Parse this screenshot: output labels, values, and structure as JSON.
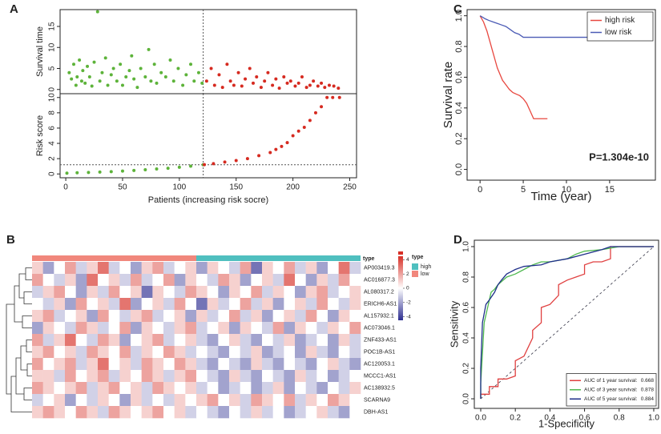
{
  "chart_data": [
    {
      "type": "scatter",
      "label": "A",
      "ylabel": "Survival time",
      "xlim": [
        -5,
        256
      ],
      "ylim": [
        -1,
        19
      ],
      "yticks": [
        0,
        5,
        10,
        15
      ],
      "vline": 121,
      "series": [
        {
          "color": "#5db33a",
          "x": [
            3,
            5,
            7,
            9,
            10,
            12,
            14,
            15,
            17,
            19,
            21,
            23,
            25,
            28,
            30,
            32,
            35,
            37,
            40,
            42,
            45,
            48,
            50,
            53,
            56,
            58,
            60,
            63,
            66,
            70,
            73,
            75,
            78,
            80,
            84,
            88,
            92,
            95,
            99,
            103,
            106,
            110,
            113,
            117,
            120
          ],
          "values": [
            4,
            2.5,
            6,
            1,
            3,
            7,
            2,
            4.5,
            1.5,
            5.5,
            3,
            0.8,
            6.5,
            18.5,
            2,
            4,
            7.5,
            1,
            3.5,
            5,
            2,
            6,
            1,
            3,
            4.5,
            8,
            2.5,
            0.5,
            5,
            3,
            9.5,
            2,
            6,
            1.5,
            4,
            3,
            7,
            2,
            5,
            1,
            3.5,
            6,
            2,
            4,
            1.5
          ]
        },
        {
          "color": "#d62a20",
          "x": [
            124,
            128,
            131,
            135,
            138,
            142,
            145,
            148,
            152,
            155,
            158,
            162,
            165,
            168,
            172,
            175,
            178,
            182,
            185,
            188,
            192,
            195,
            198,
            202,
            205,
            208,
            212,
            215,
            218,
            222,
            225,
            228,
            232,
            236,
            240
          ],
          "values": [
            2,
            5,
            1,
            3.5,
            0.5,
            6,
            2,
            1,
            4,
            0.8,
            2.5,
            5,
            1.5,
            3,
            0.5,
            2,
            4,
            1,
            2.5,
            0.3,
            3,
            1.5,
            2,
            0.8,
            1.5,
            3,
            0.5,
            1,
            2,
            0.8,
            1.5,
            0.5,
            1,
            0.8,
            0.3
          ]
        }
      ]
    },
    {
      "type": "scatter",
      "ylabel": "Risk score",
      "xlabel": "Patients (increasing risk socre)",
      "xlim": [
        -5,
        256
      ],
      "ylim": [
        -0.5,
        10.5
      ],
      "xticks": [
        0,
        50,
        100,
        150,
        200,
        250
      ],
      "yticks": [
        0,
        2,
        4,
        6,
        8,
        10
      ],
      "vline": 121,
      "hline": 1.2,
      "series": [
        {
          "color": "#5db33a",
          "x": [
            1,
            10,
            20,
            30,
            40,
            50,
            60,
            70,
            80,
            90,
            100,
            110,
            121
          ],
          "values": [
            0.1,
            0.15,
            0.2,
            0.25,
            0.3,
            0.38,
            0.45,
            0.55,
            0.65,
            0.75,
            0.88,
            1.02,
            1.2
          ]
        },
        {
          "color": "#d62a20",
          "x": [
            122,
            130,
            140,
            150,
            160,
            170,
            180,
            185,
            190,
            195,
            200,
            205,
            210,
            215,
            220,
            225,
            230,
            235,
            241
          ],
          "values": [
            1.22,
            1.35,
            1.55,
            1.75,
            2.0,
            2.4,
            2.8,
            3.2,
            3.6,
            4.1,
            5.0,
            5.6,
            6.1,
            7.0,
            8.0,
            8.8,
            10,
            10,
            10
          ]
        }
      ]
    },
    {
      "type": "heatmap",
      "label": "B",
      "annotation_name": "type",
      "zlim": [
        -4.5,
        4.5
      ],
      "colorbar_ticks": [
        4,
        2,
        0,
        -2,
        -4
      ],
      "colors": [
        "#2e2f91",
        "#ffffff",
        "#d73027"
      ],
      "groups": [
        {
          "name": "low",
          "color": "#f1877c",
          "count": 15
        },
        {
          "name": "high",
          "color": "#4fbfbf",
          "count": 15
        }
      ],
      "rows": [
        "AP003419.3",
        "AC016877.3",
        "AL080317.2",
        "ERICH6-AS1",
        "AL157932.1",
        "AC073046.1",
        "ZNF433-AS1",
        "POC1B-AS1",
        "AC120053.1",
        "MCCC1-AS1",
        "AC138932.5",
        "SCARNA9",
        "DBH-AS1"
      ],
      "values": [
        [
          1,
          -2,
          0,
          2,
          -1,
          1,
          3,
          -1,
          0,
          -2,
          1,
          2,
          -1,
          0,
          1,
          -2,
          1,
          0,
          -1,
          2,
          -3,
          1,
          0,
          2,
          -1,
          1,
          -2,
          0,
          3,
          -1
        ],
        [
          2,
          0,
          -1,
          1,
          -2,
          3,
          0,
          1,
          -1,
          2,
          -1,
          0,
          2,
          -2,
          1,
          0,
          -1,
          2,
          1,
          -2,
          0,
          1,
          -1,
          3,
          0,
          -2,
          1,
          -1,
          2,
          0
        ],
        [
          -1,
          1,
          2,
          0,
          -2,
          1,
          -1,
          2,
          0,
          1,
          -3,
          1,
          0,
          -1,
          2,
          1,
          0,
          -2,
          1,
          0,
          2,
          -1,
          1,
          0,
          -2,
          1,
          2,
          -1,
          0,
          1
        ],
        [
          0,
          -1,
          1,
          -2,
          2,
          0,
          1,
          -1,
          3,
          -2,
          0,
          1,
          -1,
          2,
          0,
          -3,
          1,
          -1,
          0,
          2,
          -1,
          1,
          -2,
          0,
          1,
          -1,
          2,
          0,
          -1,
          1
        ],
        [
          1,
          2,
          -1,
          0,
          1,
          -2,
          2,
          0,
          -1,
          1,
          2,
          -1,
          0,
          1,
          -2,
          1,
          -1,
          0,
          2,
          -1,
          1,
          -2,
          0,
          1,
          -1,
          2,
          0,
          -2,
          1,
          0
        ],
        [
          -2,
          1,
          0,
          -1,
          2,
          1,
          -1,
          0,
          2,
          -2,
          1,
          0,
          -1,
          1,
          2,
          -1,
          0,
          1,
          -2,
          1,
          0,
          -1,
          2,
          -2,
          1,
          0,
          -1,
          1,
          0,
          2
        ],
        [
          2,
          -1,
          1,
          3,
          0,
          -1,
          2,
          1,
          -2,
          0,
          1,
          2,
          -1,
          0,
          1,
          -1,
          -2,
          0,
          1,
          -1,
          -2,
          0,
          -1,
          1,
          -2,
          -1,
          0,
          -2,
          1,
          -1
        ],
        [
          1,
          2,
          0,
          1,
          -1,
          2,
          1,
          0,
          2,
          -1,
          1,
          0,
          2,
          1,
          -1,
          0,
          -1,
          -2,
          0,
          -1,
          1,
          -2,
          -1,
          0,
          -2,
          1,
          -1,
          -2,
          0,
          -1
        ],
        [
          2,
          0,
          1,
          2,
          -1,
          1,
          3,
          0,
          1,
          -1,
          2,
          1,
          0,
          2,
          1,
          -1,
          -2,
          0,
          -1,
          -2,
          1,
          -1,
          -2,
          0,
          -1,
          -2,
          0,
          1,
          -1,
          -2
        ],
        [
          1,
          1,
          -1,
          2,
          0,
          1,
          2,
          -1,
          1,
          0,
          2,
          1,
          -1,
          1,
          2,
          0,
          -1,
          -2,
          1,
          -1,
          -2,
          0,
          -1,
          -2,
          1,
          -1,
          0,
          -2,
          -1,
          0
        ],
        [
          2,
          1,
          0,
          1,
          2,
          -1,
          1,
          2,
          0,
          1,
          -1,
          2,
          1,
          0,
          1,
          -1,
          0,
          -2,
          -1,
          0,
          -2,
          -1,
          1,
          -2,
          0,
          -1,
          -2,
          0,
          -1,
          1
        ],
        [
          -1,
          0,
          1,
          -2,
          0,
          -1,
          1,
          0,
          -2,
          1,
          -1,
          0,
          -1,
          1,
          0,
          1,
          2,
          0,
          1,
          -1,
          2,
          1,
          0,
          2,
          -1,
          1,
          0,
          2,
          1,
          0
        ],
        [
          1,
          2,
          1,
          0,
          2,
          1,
          -1,
          2,
          1,
          0,
          1,
          2,
          0,
          1,
          -1,
          0,
          -1,
          -2,
          0,
          -1,
          1,
          -1,
          0,
          -2,
          -1,
          0,
          1,
          -1,
          -2,
          0
        ]
      ]
    },
    {
      "type": "line",
      "label": "C",
      "xlabel": "Time (year)",
      "ylabel": "Survival rate",
      "annotation": "P=1.304e-10",
      "legend": "top-right",
      "xlim": [
        -1.5,
        20.3
      ],
      "ylim": [
        -0.07,
        1.04
      ],
      "xticks": [
        0,
        5,
        10,
        15
      ],
      "yticks": [
        {
          "value": 0,
          "label": "0.0"
        },
        0.2,
        0.4,
        0.6,
        0.8,
        {
          "value": 1,
          "label": "1.0"
        }
      ],
      "series": [
        {
          "name": "high risk",
          "color": "#e8473f",
          "x": [
            0,
            0.2,
            0.4,
            0.6,
            0.8,
            1.0,
            1.2,
            1.4,
            1.6,
            1.8,
            2.0,
            2.3,
            2.6,
            3.0,
            3.4,
            3.8,
            4.2,
            4.6,
            5.0,
            5.4,
            5.8,
            6.2,
            7.8
          ],
          "values": [
            1,
            0.98,
            0.96,
            0.93,
            0.9,
            0.86,
            0.82,
            0.78,
            0.74,
            0.7,
            0.66,
            0.62,
            0.58,
            0.55,
            0.52,
            0.5,
            0.49,
            0.48,
            0.46,
            0.43,
            0.38,
            0.33,
            0.33
          ]
        },
        {
          "name": "low risk",
          "color": "#4b5bb5",
          "x": [
            0,
            0.3,
            0.6,
            1,
            1.5,
            2,
            2.5,
            3,
            3.5,
            4,
            4.5,
            5,
            18.5
          ],
          "values": [
            1,
            0.99,
            0.98,
            0.97,
            0.96,
            0.95,
            0.94,
            0.93,
            0.91,
            0.89,
            0.88,
            0.86,
            0.86
          ]
        }
      ]
    },
    {
      "type": "line",
      "label": "D",
      "xlabel": "1-Specificity",
      "ylabel": "Sensitivity",
      "legend": "bottom-right",
      "diagonal": true,
      "xlim": [
        -0.037,
        1.028
      ],
      "ylim": [
        -0.063,
        1.042
      ],
      "xticks": [
        {
          "value": 0,
          "label": "0.0"
        },
        0.2,
        0.4,
        0.6,
        0.8,
        {
          "value": 1,
          "label": "1.0"
        }
      ],
      "yticks": [
        {
          "value": 0,
          "label": "0.0"
        },
        0.2,
        0.4,
        0.6,
        0.8,
        {
          "value": 1,
          "label": "1.0"
        }
      ],
      "series": [
        {
          "name": "AUC of 1 year survival:",
          "auc": 0.668,
          "color": "#e04040",
          "x": [
            0,
            0,
            0.05,
            0.05,
            0.1,
            0.1,
            0.15,
            0.2,
            0.2,
            0.25,
            0.3,
            0.3,
            0.35,
            0.35,
            0.4,
            0.45,
            0.45,
            0.5,
            0.55,
            0.6,
            0.6,
            0.65,
            0.7,
            0.75,
            0.75,
            1
          ],
          "values": [
            0,
            0.03,
            0.03,
            0.08,
            0.08,
            0.13,
            0.13,
            0.15,
            0.25,
            0.28,
            0.4,
            0.45,
            0.5,
            0.6,
            0.62,
            0.68,
            0.75,
            0.78,
            0.8,
            0.82,
            0.88,
            0.9,
            0.9,
            0.92,
            1,
            1
          ]
        },
        {
          "name": "AUC of 3 year survival:",
          "auc": 0.878,
          "color": "#4fb84f",
          "x": [
            0,
            0,
            0.01,
            0.02,
            0.04,
            0.06,
            0.08,
            0.1,
            0.15,
            0.2,
            0.25,
            0.3,
            0.35,
            0.4,
            0.5,
            0.55,
            0.6,
            0.7,
            0.8,
            1
          ],
          "values": [
            0,
            0.1,
            0.3,
            0.5,
            0.6,
            0.7,
            0.72,
            0.75,
            0.8,
            0.82,
            0.85,
            0.88,
            0.9,
            0.9,
            0.92,
            0.95,
            0.97,
            0.98,
            1,
            1
          ]
        },
        {
          "name": "AUC of 5 year survival:",
          "auc": 0.884,
          "color": "#1f2f8a",
          "x": [
            0,
            0,
            0.01,
            0.03,
            0.05,
            0.08,
            0.1,
            0.12,
            0.15,
            0.2,
            0.25,
            0.35,
            0.4,
            0.5,
            0.6,
            0.7,
            0.75,
            1
          ],
          "values": [
            0,
            0.2,
            0.5,
            0.62,
            0.65,
            0.7,
            0.75,
            0.78,
            0.82,
            0.85,
            0.87,
            0.88,
            0.9,
            0.92,
            0.95,
            0.98,
            1,
            1
          ]
        }
      ]
    }
  ]
}
